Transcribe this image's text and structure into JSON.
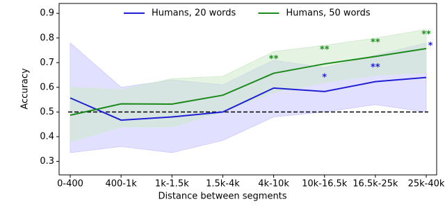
{
  "chart_data": {
    "type": "line",
    "xlabel": "Distance between segments",
    "ylabel": "Accuracy",
    "categories": [
      "0-400",
      "400-1k",
      "1k-1.5k",
      "1.5k-4k",
      "4k-10k",
      "10k-16.5k",
      "16.5k-25k",
      "25k-40k"
    ],
    "series": [
      {
        "name": "Humans, 20 words",
        "color": "#1f1fd6",
        "band_color": "#c8c8ff",
        "values": [
          0.557,
          0.467,
          0.48,
          0.5,
          0.597,
          0.583,
          0.623,
          0.64
        ],
        "lower": [
          0.335,
          0.36,
          0.335,
          0.385,
          0.48,
          0.5,
          0.53,
          0.5
        ],
        "upper": [
          0.78,
          0.6,
          0.63,
          0.61,
          0.71,
          0.68,
          0.73,
          0.78
        ],
        "significance": [
          null,
          null,
          null,
          null,
          null,
          "*",
          "**",
          "*"
        ]
      },
      {
        "name": "Humans, 50 words",
        "color": "#1a8a1a",
        "band_color": "#cfeacb",
        "values": [
          0.487,
          0.533,
          0.532,
          0.568,
          0.657,
          0.695,
          0.725,
          0.757
        ],
        "lower": [
          0.38,
          0.44,
          0.44,
          0.5,
          0.58,
          0.62,
          0.65,
          0.66
        ],
        "upper": [
          0.6,
          0.59,
          0.635,
          0.645,
          0.745,
          0.77,
          0.8,
          0.835
        ],
        "significance": [
          null,
          null,
          null,
          null,
          "**",
          "**",
          "**",
          "**"
        ]
      }
    ],
    "reference_line": 0.5,
    "ylim": [
      0.245,
      0.94
    ],
    "yticks": [
      0.3,
      0.4,
      0.5,
      0.6,
      0.7,
      0.8,
      0.9
    ],
    "legend": "upper center"
  }
}
